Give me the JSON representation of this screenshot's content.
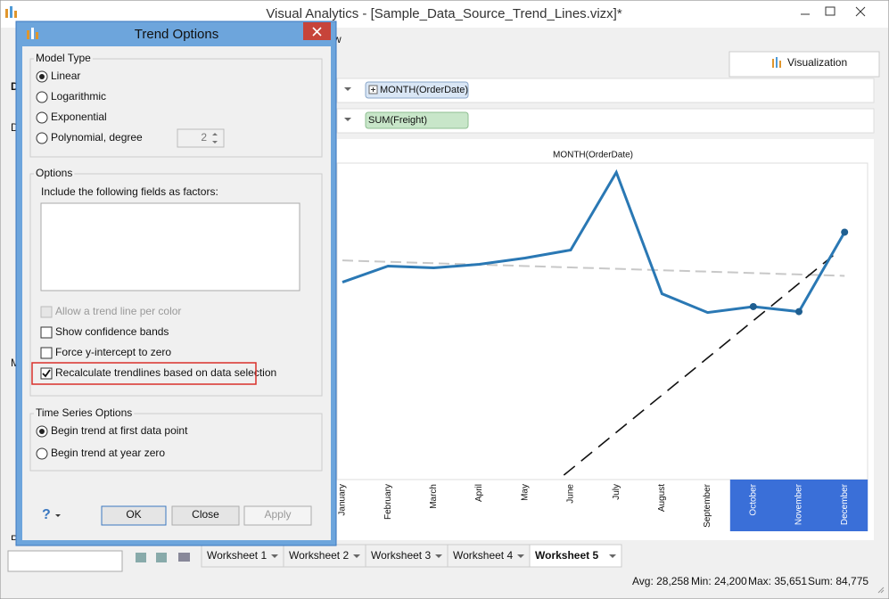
{
  "window": {
    "title": "Visual Analytics - [Sample_Data_Source_Trend_Lines.vizx]*",
    "menu_fragment": "w",
    "side_fragments": [
      "D",
      "D",
      "M",
      "P"
    ]
  },
  "visualization_tab": "Visualization",
  "shelves": {
    "columns_pill": "MONTH(OrderDate)",
    "rows_pill": "SUM(Freight)"
  },
  "chart_data": {
    "type": "line",
    "title": "MONTH(OrderDate)",
    "categories": [
      "January",
      "February",
      "March",
      "April",
      "May",
      "June",
      "July",
      "August",
      "September",
      "October",
      "November",
      "December"
    ],
    "values": [
      28446,
      30762,
      30504,
      31019,
      31920,
      33078,
      44271,
      26773,
      24071,
      24924,
      24200,
      35651
    ],
    "ylim": [
      0,
      45600
    ],
    "color": "#2a78b4",
    "selected_categories": [
      "October",
      "November",
      "December"
    ],
    "selection_color": "#3a6fd8",
    "trend_colors": {
      "all": "#c8c8c8",
      "selection": "#111111"
    }
  },
  "worksheets": [
    "Worksheet 1",
    "Worksheet 2",
    "Worksheet 3",
    "Worksheet 4",
    "Worksheet 5"
  ],
  "active_worksheet": "Worksheet 5",
  "status": [
    "Avg: 28,258",
    "Min: 24,200",
    "Max: 35,651",
    "Sum: 84,775"
  ],
  "dialog": {
    "title": "Trend Options",
    "model_type": {
      "label": "Model Type",
      "options": [
        "Linear",
        "Logarithmic",
        "Exponential",
        "Polynomial, degree"
      ],
      "degree": "2"
    },
    "options": {
      "label": "Options",
      "factors_label": "Include the following fields as factors:",
      "checks": [
        "Allow a trend line per color",
        "Show confidence bands",
        "Force y-intercept to zero",
        "Recalculate trendlines based on data selection"
      ]
    },
    "time_series": {
      "label": "Time Series Options",
      "options": [
        "Begin trend at first data point",
        "Begin trend at year zero"
      ]
    },
    "help": "?",
    "buttons": [
      "OK",
      "Close",
      "Apply"
    ]
  }
}
